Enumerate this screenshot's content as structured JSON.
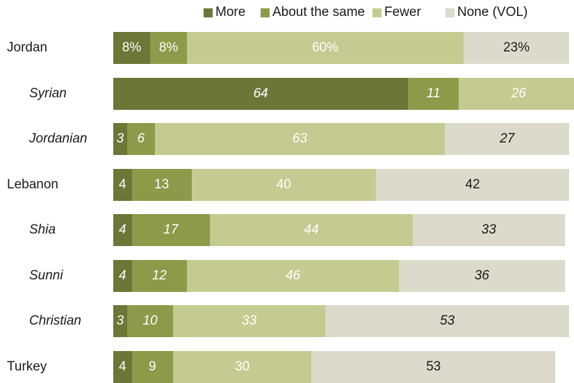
{
  "chart_data": {
    "type": "bar",
    "orientation": "horizontal",
    "stacked": true,
    "legend_position": "top",
    "grid": false,
    "xlim": [
      0,
      100
    ],
    "series": [
      {
        "name": "More",
        "color": "#6b7637"
      },
      {
        "name": "About the same",
        "color": "#8c9a49"
      },
      {
        "name": "Fewer",
        "color": "#c4cb91"
      },
      {
        "name": "None (VOL)",
        "color": "#dcdacb"
      }
    ],
    "rows": [
      {
        "label": "Jordan",
        "sub": false,
        "values": [
          8,
          8,
          60,
          23
        ],
        "labels": [
          "8%",
          "8%",
          "60%",
          "23%"
        ]
      },
      {
        "label": "Syrian",
        "sub": true,
        "values": [
          64,
          11,
          26,
          0
        ],
        "labels": [
          "64",
          "11",
          "26",
          ""
        ]
      },
      {
        "label": "Jordanian",
        "sub": true,
        "values": [
          3,
          6,
          63,
          27
        ],
        "labels": [
          "3",
          "6",
          "63",
          "27"
        ]
      },
      {
        "label": "Lebanon",
        "sub": false,
        "values": [
          4,
          13,
          40,
          42
        ],
        "labels": [
          "4",
          "13",
          "40",
          "42"
        ]
      },
      {
        "label": "Shia",
        "sub": true,
        "values": [
          4,
          17,
          44,
          33
        ],
        "labels": [
          "4",
          "17",
          "44",
          "33"
        ]
      },
      {
        "label": "Sunni",
        "sub": true,
        "values": [
          4,
          12,
          46,
          36
        ],
        "labels": [
          "4",
          "12",
          "46",
          "36"
        ]
      },
      {
        "label": "Christian",
        "sub": true,
        "values": [
          3,
          10,
          33,
          53
        ],
        "labels": [
          "3",
          "10",
          "33",
          "53"
        ]
      },
      {
        "label": "Turkey",
        "sub": false,
        "values": [
          4,
          9,
          30,
          53
        ],
        "labels": [
          "4",
          "9",
          "30",
          "53"
        ]
      }
    ]
  }
}
